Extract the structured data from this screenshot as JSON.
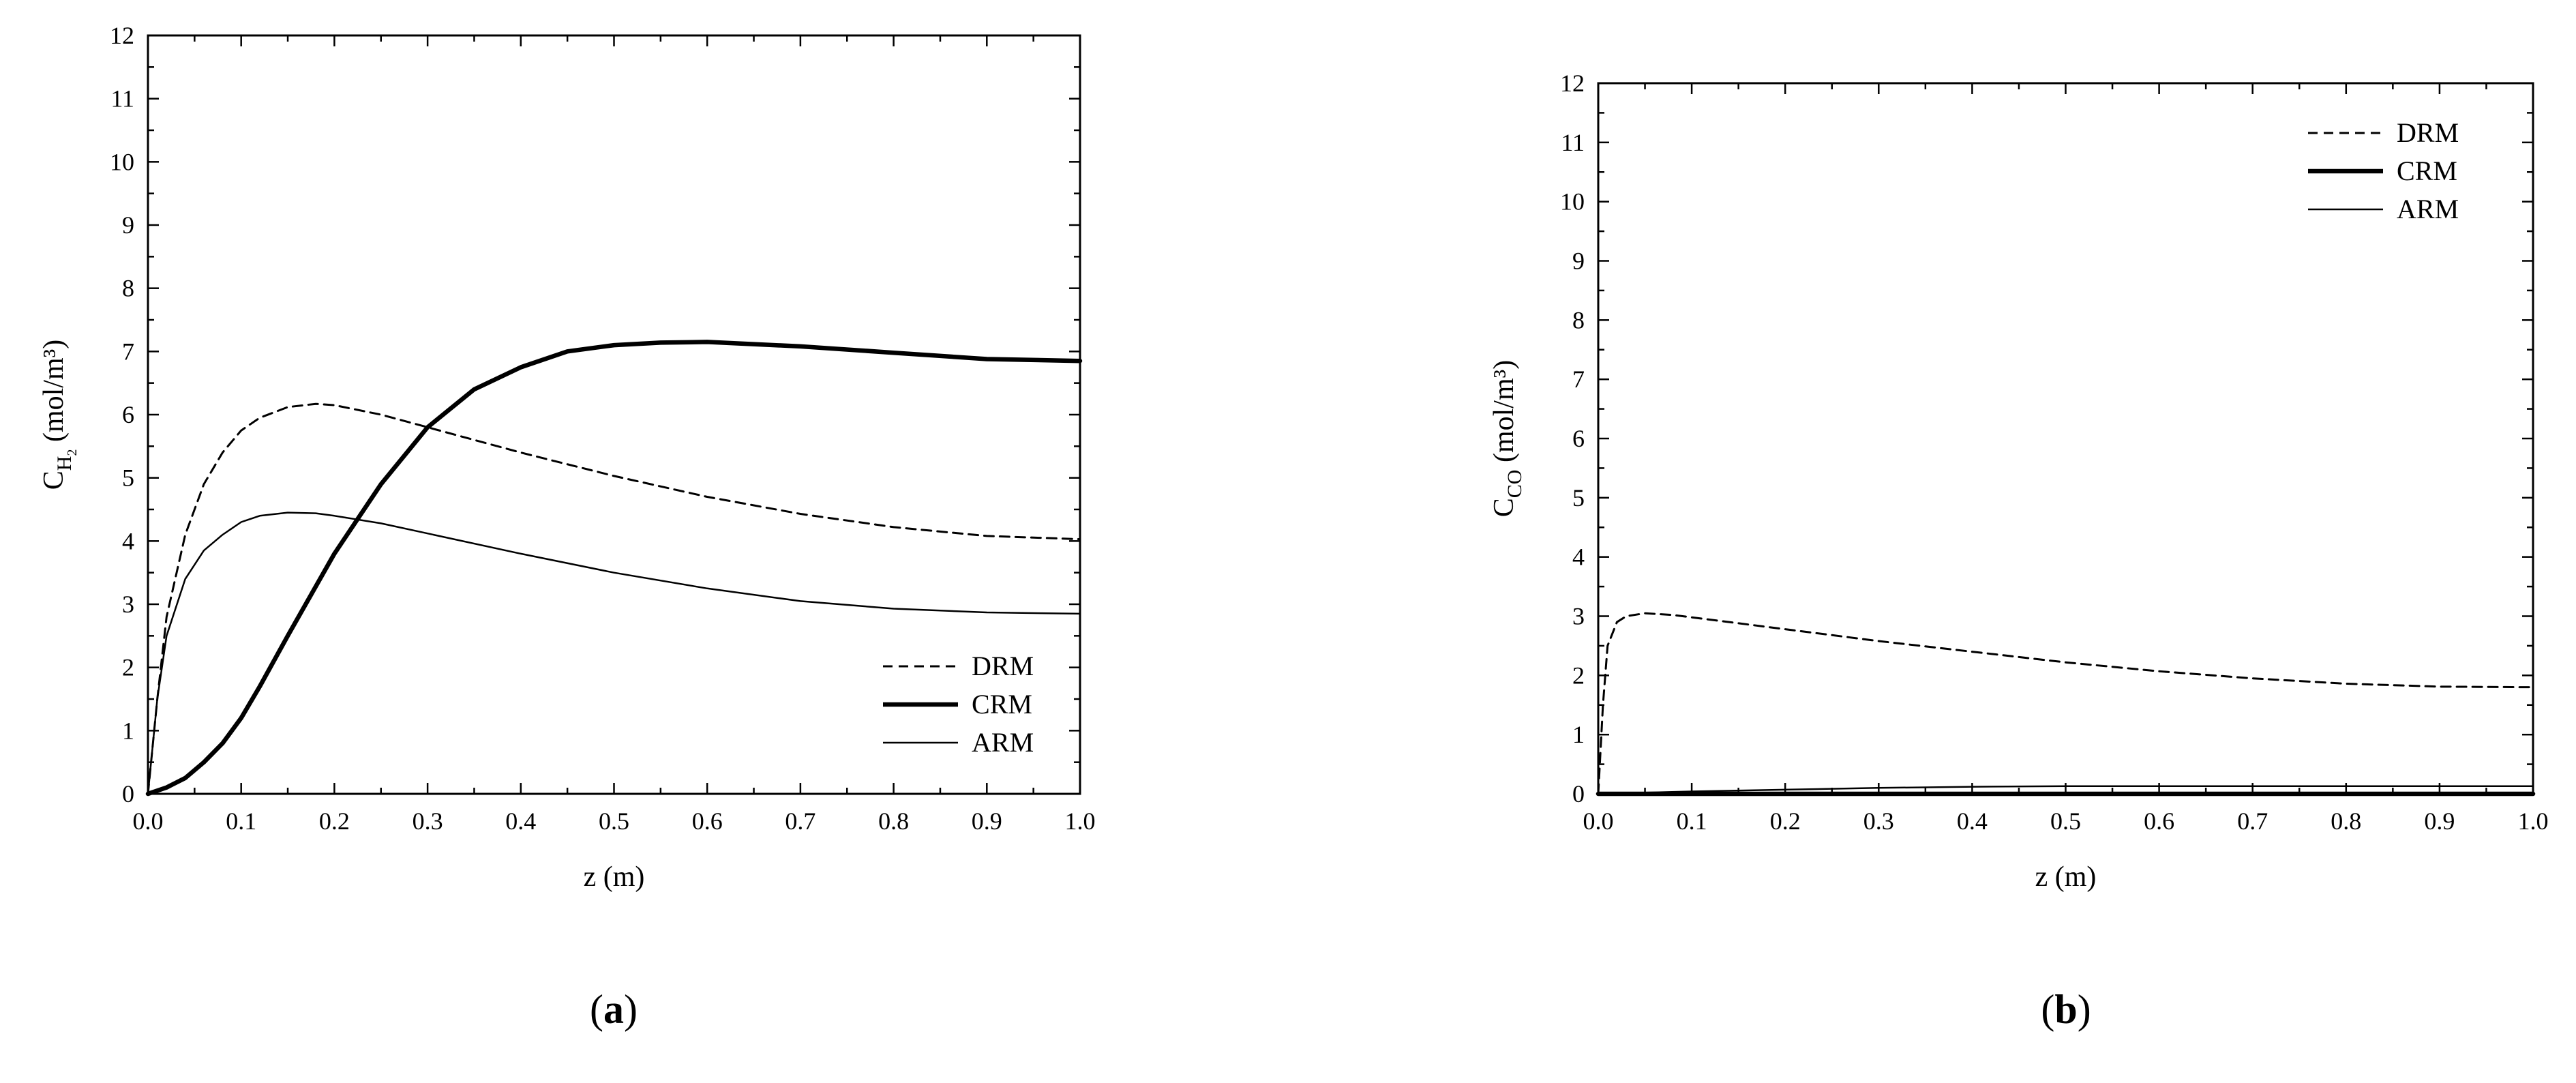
{
  "chart_data": [
    {
      "type": "line",
      "panel_label": "a",
      "xlabel": "z (m)",
      "ylabel": {
        "main": "C",
        "sub": "H",
        "subsub": "2",
        "unit": "(mol/m³)"
      },
      "xlim": [
        0.0,
        1.0
      ],
      "ylim": [
        0,
        12
      ],
      "xticks": [
        "0.0",
        "0.1",
        "0.2",
        "0.3",
        "0.4",
        "0.5",
        "0.6",
        "0.7",
        "0.8",
        "0.9",
        "1.0"
      ],
      "yticks": [
        "0",
        "1",
        "2",
        "3",
        "4",
        "5",
        "6",
        "7",
        "8",
        "9",
        "10",
        "11",
        "12"
      ],
      "grid": false,
      "legend_position": "bottom-right",
      "series": [
        {
          "name": "DRM",
          "style": "dashed",
          "x": [
            0.0,
            0.01,
            0.02,
            0.04,
            0.06,
            0.08,
            0.1,
            0.12,
            0.15,
            0.18,
            0.2,
            0.25,
            0.3,
            0.4,
            0.5,
            0.6,
            0.7,
            0.8,
            0.9,
            1.0
          ],
          "y": [
            0.0,
            1.5,
            2.8,
            4.1,
            4.9,
            5.4,
            5.75,
            5.95,
            6.12,
            6.17,
            6.15,
            6.0,
            5.8,
            5.4,
            5.03,
            4.7,
            4.43,
            4.22,
            4.08,
            4.03
          ]
        },
        {
          "name": "CRM",
          "style": "thick",
          "x": [
            0.0,
            0.02,
            0.04,
            0.06,
            0.08,
            0.1,
            0.12,
            0.15,
            0.2,
            0.25,
            0.3,
            0.35,
            0.4,
            0.45,
            0.5,
            0.55,
            0.6,
            0.7,
            0.8,
            0.9,
            1.0
          ],
          "y": [
            0.0,
            0.1,
            0.25,
            0.5,
            0.8,
            1.2,
            1.7,
            2.5,
            3.8,
            4.9,
            5.8,
            6.4,
            6.75,
            7.0,
            7.1,
            7.14,
            7.15,
            7.08,
            6.98,
            6.88,
            6.85
          ]
        },
        {
          "name": "ARM",
          "style": "thin",
          "x": [
            0.0,
            0.01,
            0.02,
            0.04,
            0.06,
            0.08,
            0.1,
            0.12,
            0.15,
            0.18,
            0.2,
            0.25,
            0.3,
            0.4,
            0.5,
            0.6,
            0.7,
            0.8,
            0.9,
            1.0
          ],
          "y": [
            0.0,
            1.5,
            2.5,
            3.4,
            3.85,
            4.1,
            4.3,
            4.4,
            4.45,
            4.44,
            4.4,
            4.28,
            4.12,
            3.8,
            3.5,
            3.25,
            3.05,
            2.93,
            2.87,
            2.85
          ]
        }
      ]
    },
    {
      "type": "line",
      "panel_label": "b",
      "xlabel": "z (m)",
      "ylabel": {
        "main": "C",
        "sub": "CO",
        "subsub": "",
        "unit": "(mol/m³)"
      },
      "xlim": [
        0.0,
        1.0
      ],
      "ylim": [
        0,
        12
      ],
      "xticks": [
        "0.0",
        "0.1",
        "0.2",
        "0.3",
        "0.4",
        "0.5",
        "0.6",
        "0.7",
        "0.8",
        "0.9",
        "1.0"
      ],
      "yticks": [
        "0",
        "1",
        "2",
        "3",
        "4",
        "5",
        "6",
        "7",
        "8",
        "9",
        "10",
        "11",
        "12"
      ],
      "grid": false,
      "legend_position": "top-right",
      "series": [
        {
          "name": "DRM",
          "style": "dashed",
          "x": [
            0.0,
            0.005,
            0.01,
            0.02,
            0.03,
            0.05,
            0.08,
            0.1,
            0.15,
            0.2,
            0.3,
            0.4,
            0.5,
            0.6,
            0.7,
            0.8,
            0.9,
            1.0
          ],
          "y": [
            0.0,
            1.5,
            2.5,
            2.9,
            3.0,
            3.05,
            3.02,
            2.98,
            2.88,
            2.78,
            2.58,
            2.4,
            2.22,
            2.07,
            1.95,
            1.86,
            1.81,
            1.8
          ]
        },
        {
          "name": "CRM",
          "style": "thick",
          "x": [
            0.0,
            0.1,
            0.2,
            0.4,
            0.6,
            0.8,
            1.0
          ],
          "y": [
            0.0,
            0.0,
            0.0,
            0.0,
            0.0,
            0.0,
            0.0
          ]
        },
        {
          "name": "ARM",
          "style": "thin",
          "x": [
            0.0,
            0.05,
            0.1,
            0.2,
            0.3,
            0.4,
            0.5,
            0.6,
            0.8,
            1.0
          ],
          "y": [
            0.0,
            0.02,
            0.04,
            0.07,
            0.1,
            0.12,
            0.13,
            0.13,
            0.13,
            0.13
          ]
        }
      ]
    }
  ]
}
